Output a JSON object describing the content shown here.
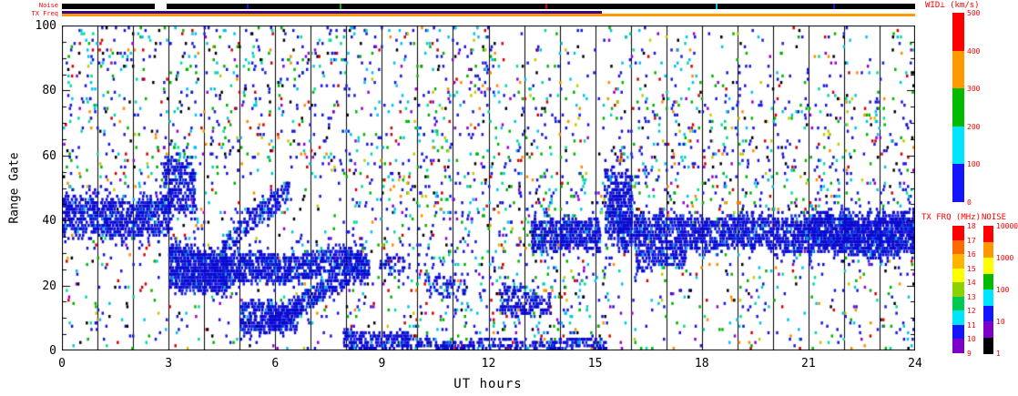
{
  "chart_data": {
    "type": "heatmap",
    "title": "",
    "xlabel": "UT hours",
    "ylabel": "Range Gate",
    "xlim": [
      0,
      24
    ],
    "ylim": [
      0,
      100
    ],
    "xticks": [
      0,
      3,
      6,
      9,
      12,
      15,
      18,
      21,
      24
    ],
    "yticks": [
      0,
      20,
      40,
      60,
      80,
      100
    ],
    "grid": "vertical black line every 1 hour",
    "value_label": "WID⊥ (km/s)",
    "value_range": [
      0,
      500
    ],
    "top_strips": {
      "noise": {
        "label": "Noise",
        "segments": [
          {
            "t": [
              0,
              2.6
            ],
            "color": "#000000"
          },
          {
            "t": [
              2.95,
              24
            ],
            "color": "#000000"
          }
        ],
        "specks": [
          {
            "t": 5.2,
            "color": "#1616e0"
          },
          {
            "t": 7.8,
            "color": "#00b400"
          },
          {
            "t": 13.6,
            "color": "#d40000"
          },
          {
            "t": 18.4,
            "color": "#00c3f0"
          },
          {
            "t": 21.7,
            "color": "#1616e0"
          }
        ]
      },
      "tx_freq": {
        "label": "TX Freq",
        "rows": [
          {
            "name": "upper",
            "segments": [
              {
                "t": [
                  0,
                  15.2
                ],
                "color": "#2d0a8e"
              }
            ]
          },
          {
            "name": "lower",
            "segments": [
              {
                "t": [
                  0,
                  24
                ],
                "color": "#ff9a00"
              }
            ]
          }
        ]
      }
    },
    "colorbars": [
      {
        "id": "wid",
        "title": "WID⊥ (km/s)",
        "tick_labels": [
          "500",
          "400",
          "300",
          "200",
          "100",
          "0"
        ],
        "colors_top_to_bottom": [
          "#ff0000",
          "#ff9900",
          "#00bb00",
          "#00e5ff",
          "#1414ff"
        ]
      },
      {
        "id": "txfrq",
        "title": "TX FRQ (MHz)",
        "tick_labels": [
          "18",
          "17",
          "16",
          "15",
          "14",
          "13",
          "12",
          "11",
          "10",
          "9"
        ],
        "colors_top_to_bottom": [
          "#ff0000",
          "#ff6a00",
          "#ffb400",
          "#ffff00",
          "#8cd200",
          "#00c850",
          "#00e5ff",
          "#1414ff",
          "#7d00c8"
        ]
      },
      {
        "id": "noise",
        "title": "NOISE",
        "tick_labels": [
          "10000",
          "1000",
          "100",
          "10",
          "1"
        ],
        "colors_top_to_bottom": [
          "#ff0000",
          "#ff9900",
          "#ffff00",
          "#00bb00",
          "#00e5ff",
          "#1414ff",
          "#7d00c8",
          "#000000"
        ]
      }
    ],
    "background_scatter": {
      "density": 0.04,
      "palette": [
        [
          "#1616e0",
          0.36
        ],
        [
          "#00c3f0",
          0.13
        ],
        [
          "#00b400",
          0.12
        ],
        [
          "#000000",
          0.09
        ],
        [
          "#d40000",
          0.07
        ],
        [
          "#ff8c00",
          0.05
        ],
        [
          "#c8c800",
          0.04
        ],
        [
          "#9400d3",
          0.06
        ],
        [
          "#00dca0",
          0.08
        ]
      ]
    },
    "diffuse_regions": [
      {
        "t": [
          9.0,
          15.4
        ],
        "gate": [
          0,
          55
        ],
        "density": 0.05
      },
      {
        "t": [
          15.4,
          24
        ],
        "gate": [
          42,
          78
        ],
        "density": 0.04
      },
      {
        "t": [
          0,
          3
        ],
        "gate": [
          48,
          100
        ],
        "density": 0.03
      },
      {
        "t": [
          3,
          9
        ],
        "gate": [
          55,
          100
        ],
        "density": 0.03
      },
      {
        "t": [
          10,
          12.2
        ],
        "gate": [
          55,
          100
        ],
        "density": 0.035
      }
    ],
    "echo_bands": [
      {
        "t0": 0.0,
        "t1": 3.05,
        "g0": 41,
        "g1": 40,
        "h0": 5,
        "h1": 5,
        "d": 0.55
      },
      {
        "t0": 2.85,
        "t1": 3.7,
        "g0": 50,
        "g1": 49,
        "h0": 7,
        "h1": 6,
        "d": 0.5
      },
      {
        "t0": 3.0,
        "t1": 4.6,
        "g0": 25,
        "g1": 24,
        "h0": 5.5,
        "h1": 5,
        "d": 0.8
      },
      {
        "t0": 4.5,
        "t1": 6.35,
        "g0": 31,
        "g1": 49,
        "h0": 2.5,
        "h1": 3,
        "d": 0.5
      },
      {
        "t0": 4.5,
        "t1": 8.6,
        "g0": 24,
        "g1": 27,
        "h0": 4,
        "h1": 3,
        "d": 0.65
      },
      {
        "t0": 5.0,
        "t1": 6.6,
        "g0": 9,
        "g1": 10,
        "h0": 4.5,
        "h1": 3,
        "d": 0.6
      },
      {
        "t0": 5.8,
        "t1": 8.6,
        "g0": 9,
        "g1": 25,
        "h0": 2.5,
        "h1": 2.5,
        "d": 0.5
      },
      {
        "t0": 7.9,
        "t1": 9.7,
        "g0": 2.5,
        "g1": 2.5,
        "h0": 2.5,
        "h1": 2,
        "d": 0.55
      },
      {
        "t0": 8.9,
        "t1": 9.6,
        "g0": 27,
        "g1": 26,
        "h0": 2.5,
        "h1": 2,
        "d": 0.3
      },
      {
        "t0": 9.7,
        "t1": 15.3,
        "g0": 1.2,
        "g1": 1.2,
        "h0": 1.4,
        "h1": 1.4,
        "d": 0.4
      },
      {
        "t0": 10.2,
        "t1": 11.3,
        "g0": 20,
        "g1": 18,
        "h0": 3,
        "h1": 3,
        "d": 0.25
      },
      {
        "t0": 12.3,
        "t1": 13.7,
        "g0": 15,
        "g1": 14,
        "h0": 4,
        "h1": 3,
        "d": 0.4
      },
      {
        "t0": 13.2,
        "t1": 15.1,
        "g0": 36,
        "g1": 34,
        "h0": 4,
        "h1": 4,
        "d": 0.6
      },
      {
        "t0": 15.25,
        "t1": 16.0,
        "g0": 46,
        "g1": 44,
        "h0": 9,
        "h1": 7,
        "d": 0.6
      },
      {
        "t0": 15.6,
        "t1": 24.0,
        "g0": 36,
        "g1": 35,
        "h0": 4,
        "h1": 4.5,
        "d": 0.6
      },
      {
        "t0": 16.1,
        "t1": 17.5,
        "g0": 27,
        "g1": 28,
        "h0": 3,
        "h1": 2.5,
        "d": 0.45
      },
      {
        "t0": 21.0,
        "t1": 24.0,
        "g0": 35,
        "g1": 35,
        "h0": 5.5,
        "h1": 5.5,
        "d": 0.4
      }
    ]
  }
}
